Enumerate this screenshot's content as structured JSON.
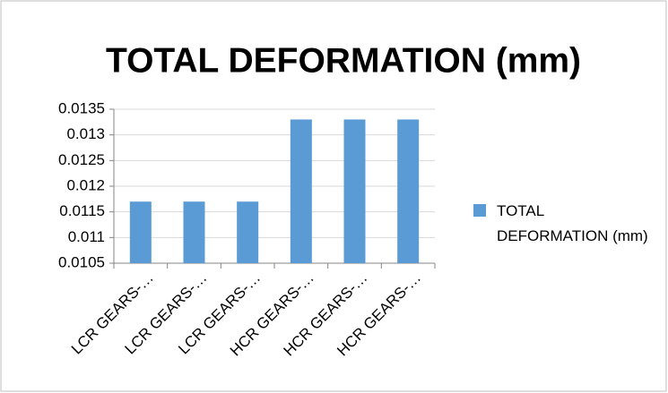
{
  "chart_data": {
    "type": "bar",
    "title": "TOTAL DEFORMATION (mm)",
    "categories": [
      "LCR GEARS-…",
      "LCR GEARS-…",
      "LCR GEARS-…",
      "HCR GEARS-…",
      "HCR GEARS-…",
      "HCR GEARS-…"
    ],
    "series": [
      {
        "name": "TOTAL DEFORMATION (mm)",
        "color": "#5b9bd5",
        "values": [
          0.0117,
          0.0117,
          0.0117,
          0.0133,
          0.0133,
          0.0133
        ]
      }
    ],
    "ylim": [
      0.0105,
      0.0135
    ],
    "yticks": [
      0.0105,
      0.011,
      0.0115,
      0.012,
      0.0125,
      0.013,
      0.0135
    ],
    "grid": true,
    "legend": "right"
  }
}
